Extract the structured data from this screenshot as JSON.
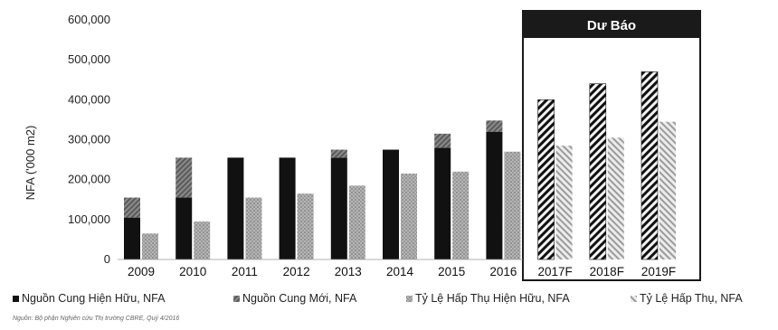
{
  "chart_data": {
    "type": "bar",
    "ylabel": "NFA ('000 m2)",
    "ylim": [
      0,
      600000
    ],
    "yticks": [
      "0",
      "100,000",
      "200,000",
      "300,000",
      "400,000",
      "500,000",
      "600,000"
    ],
    "ytick_values": [
      0,
      100000,
      200000,
      300000,
      400000,
      500000,
      600000
    ],
    "categories": [
      "2009",
      "2010",
      "2011",
      "2012",
      "2013",
      "2014",
      "2015",
      "2016",
      "2017F",
      "2018F",
      "2019F"
    ],
    "series": [
      {
        "name": "Nguồn Cung Hiện Hữu, NFA",
        "values": [
          105000,
          155000,
          255000,
          255000,
          255000,
          275000,
          280000,
          320000,
          400000,
          440000,
          470000
        ]
      },
      {
        "name": "Nguồn Cung Mới, NFA",
        "values": [
          50000,
          100000,
          0,
          0,
          20000,
          0,
          35000,
          28000,
          0,
          0,
          0
        ]
      },
      {
        "name": "Tỷ Lệ Hấp Thụ Hiện Hữu, NFA",
        "values": [
          65000,
          95000,
          155000,
          165000,
          185000,
          215000,
          220000,
          270000,
          0,
          0,
          0
        ]
      },
      {
        "name": "Tỷ Lệ Hấp Thụ, NFA",
        "values": [
          0,
          0,
          0,
          0,
          0,
          0,
          0,
          0,
          285000,
          305000,
          345000
        ]
      }
    ],
    "forecast_label": "Dư Báo",
    "grid": false,
    "legend_position": "bottom"
  },
  "legend_items": [
    "Nguồn Cung Hiện Hữu, NFA",
    "Nguồn Cung Mới, NFA",
    "Tỷ Lệ Hấp Thụ Hiện Hữu, NFA",
    "Tỷ Lệ Hấp Thụ, NFA"
  ],
  "source_note": "Nguồn: Bộ phận Nghiên cứu Thị trường CBRE, Quý 4/2016",
  "colors": {
    "existing": "#111111",
    "new_supply": "#777777",
    "absorption_existing": "#9a9a9a",
    "forecast_header": "#1a1a1a"
  }
}
